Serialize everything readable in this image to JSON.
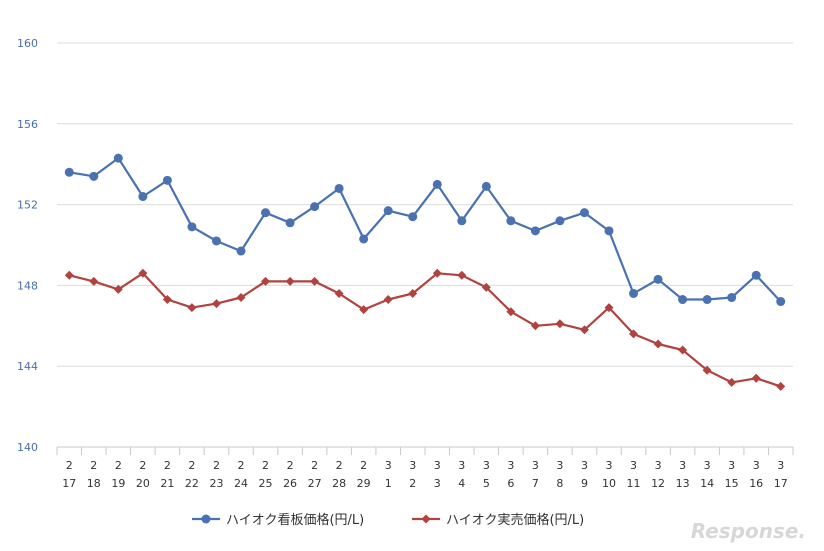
{
  "chart_data": {
    "type": "line",
    "title": "",
    "xlabel": "",
    "ylabel": "",
    "ylim": [
      140,
      160
    ],
    "yticks": [
      140,
      144,
      148,
      152,
      156,
      160
    ],
    "grid": true,
    "legend_position": "bottom",
    "categories": [
      [
        "2",
        "17"
      ],
      [
        "2",
        "18"
      ],
      [
        "2",
        "19"
      ],
      [
        "2",
        "20"
      ],
      [
        "2",
        "21"
      ],
      [
        "2",
        "22"
      ],
      [
        "2",
        "23"
      ],
      [
        "2",
        "24"
      ],
      [
        "2",
        "25"
      ],
      [
        "2",
        "26"
      ],
      [
        "2",
        "27"
      ],
      [
        "2",
        "28"
      ],
      [
        "2",
        "29"
      ],
      [
        "3",
        "1"
      ],
      [
        "3",
        "2"
      ],
      [
        "3",
        "3"
      ],
      [
        "3",
        "4"
      ],
      [
        "3",
        "5"
      ],
      [
        "3",
        "6"
      ],
      [
        "3",
        "7"
      ],
      [
        "3",
        "8"
      ],
      [
        "3",
        "9"
      ],
      [
        "3",
        "10"
      ],
      [
        "3",
        "11"
      ],
      [
        "3",
        "12"
      ],
      [
        "3",
        "13"
      ],
      [
        "3",
        "14"
      ],
      [
        "3",
        "15"
      ],
      [
        "3",
        "16"
      ],
      [
        "3",
        "17"
      ]
    ],
    "series": [
      {
        "name": "ハイオク看板価格(円/L)",
        "color": "#4a72b0",
        "marker": "circle",
        "values": [
          153.6,
          153.4,
          154.3,
          152.4,
          153.2,
          150.9,
          150.2,
          149.7,
          151.6,
          151.1,
          151.9,
          152.8,
          150.3,
          151.7,
          151.4,
          153.0,
          151.2,
          152.9,
          151.2,
          150.7,
          151.2,
          151.6,
          150.7,
          147.6,
          148.3,
          147.3,
          147.3,
          147.4,
          148.5,
          147.2
        ]
      },
      {
        "name": "ハイオク実売価格(円/L)",
        "color": "#b04340",
        "marker": "diamond",
        "values": [
          148.5,
          148.2,
          147.8,
          148.6,
          147.3,
          146.9,
          147.1,
          147.4,
          148.2,
          148.2,
          148.2,
          147.6,
          146.8,
          147.3,
          147.6,
          148.6,
          148.5,
          147.9,
          146.7,
          146.0,
          146.1,
          145.8,
          146.9,
          145.6,
          145.1,
          144.8,
          143.8,
          143.2,
          143.4,
          143.0
        ]
      }
    ]
  },
  "watermark": "Response."
}
